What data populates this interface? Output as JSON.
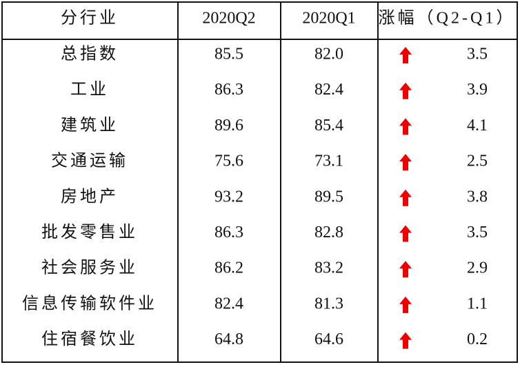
{
  "table": {
    "header": [
      "分行业",
      "2020Q2",
      "2020Q1",
      "涨幅（Q2-Q1）"
    ],
    "rows": [
      [
        "总指数",
        "85.5",
        "82.0",
        "3.5"
      ],
      [
        "工业",
        "86.3",
        "82.4",
        "3.9"
      ],
      [
        "建筑业",
        "89.6",
        "85.4",
        "4.1"
      ],
      [
        "交通运输",
        "75.6",
        "73.1",
        "2.5"
      ],
      [
        "房地产",
        "93.2",
        "89.5",
        "3.8"
      ],
      [
        "批发零售业",
        "86.3",
        "82.8",
        "3.5"
      ],
      [
        "社会服务业",
        "86.2",
        "83.2",
        "2.9"
      ],
      [
        "信息传输软件业",
        "82.4",
        "81.3",
        "1.1"
      ],
      [
        "住宿餐饮业",
        "64.8",
        "64.6",
        "0.2"
      ]
    ]
  }
}
